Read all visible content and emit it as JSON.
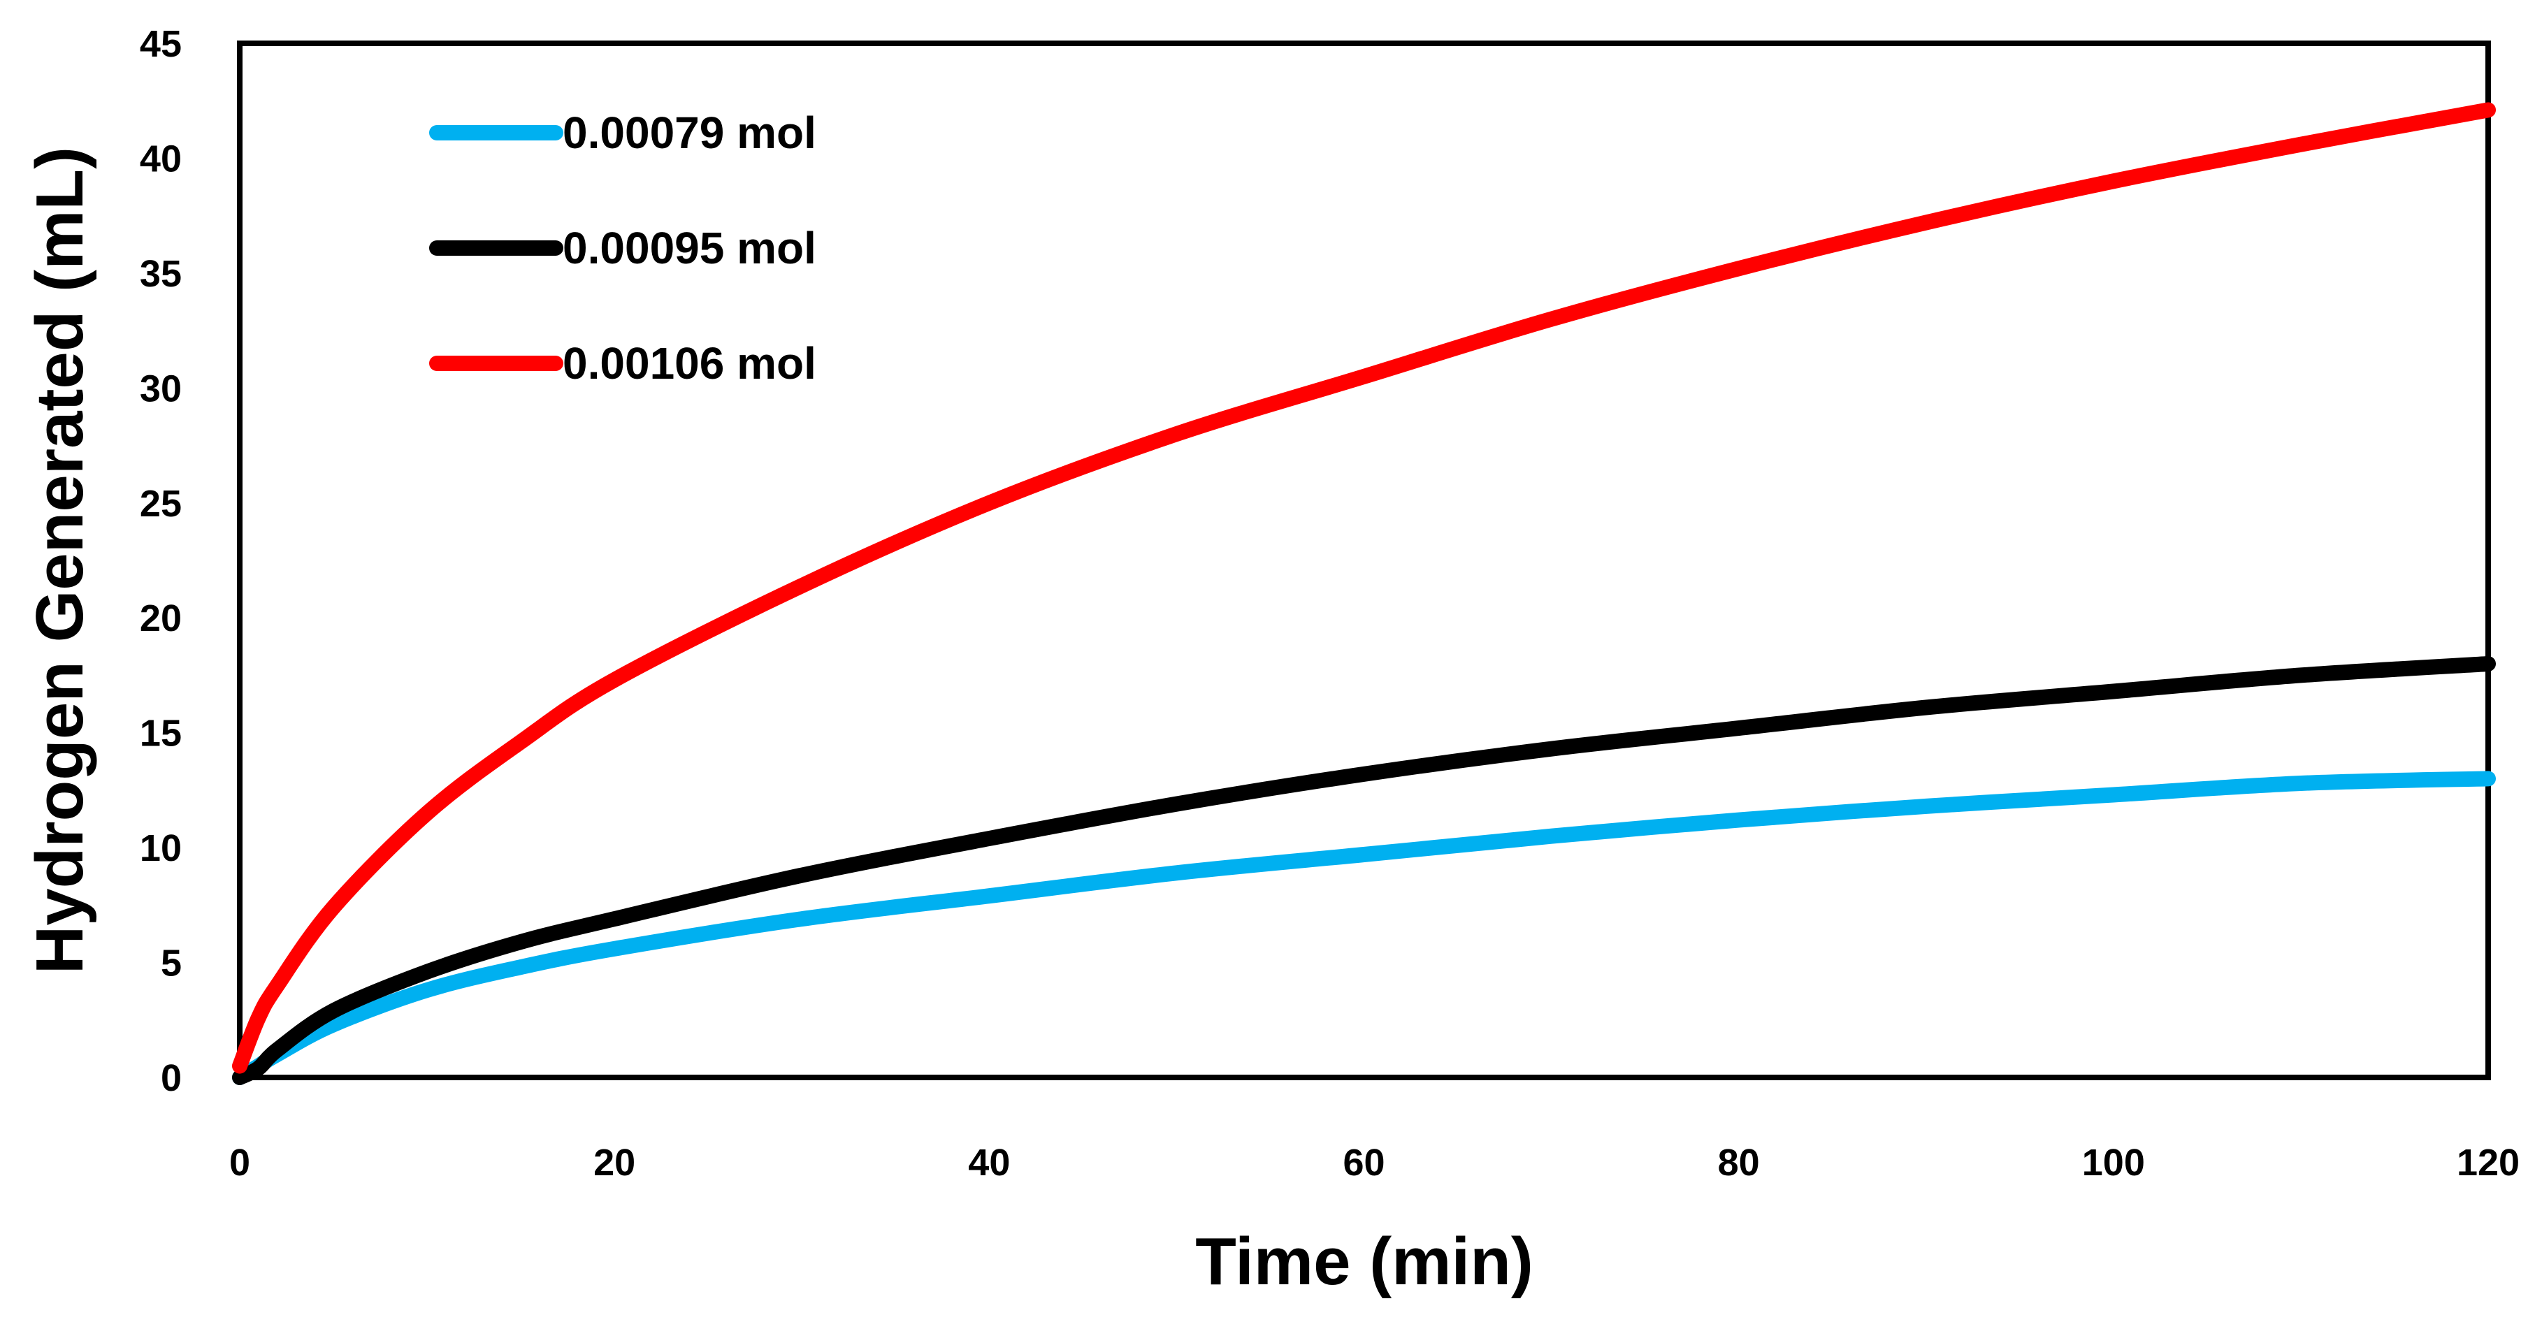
{
  "chart_data": {
    "type": "line",
    "title": "",
    "xlabel": "Time (min)",
    "ylabel": "Hydrogen Generated (mL)",
    "xlim": [
      0,
      120
    ],
    "ylim": [
      0,
      45
    ],
    "xticks": [
      0,
      20,
      40,
      60,
      80,
      100,
      120
    ],
    "yticks": [
      0,
      5,
      10,
      15,
      20,
      25,
      30,
      35,
      40,
      45
    ],
    "grid": false,
    "legend_position": "top-left",
    "x": [
      0,
      1,
      2,
      5,
      10,
      15,
      20,
      30,
      40,
      50,
      60,
      70,
      80,
      90,
      100,
      110,
      120
    ],
    "series": [
      {
        "name": "0.00079 mol",
        "color": "#00b0f0",
        "values": [
          0,
          0.5,
          1.0,
          2.3,
          3.8,
          4.8,
          5.6,
          6.9,
          7.9,
          8.9,
          9.7,
          10.5,
          11.2,
          11.8,
          12.3,
          12.8,
          13.0
        ]
      },
      {
        "name": "0.00095 mol",
        "color": "#000000",
        "values": [
          0,
          0.4,
          1.2,
          2.9,
          4.6,
          5.9,
          6.9,
          8.8,
          10.4,
          11.9,
          13.2,
          14.3,
          15.2,
          16.1,
          16.8,
          17.5,
          18.0
        ]
      },
      {
        "name": "0.00106 mol",
        "color": "#ff0000",
        "values": [
          0.5,
          2.6,
          4.0,
          7.4,
          11.5,
          14.6,
          17.3,
          21.4,
          25.0,
          28.0,
          30.5,
          33.0,
          35.2,
          37.2,
          39.0,
          40.6,
          42.1
        ]
      }
    ]
  }
}
